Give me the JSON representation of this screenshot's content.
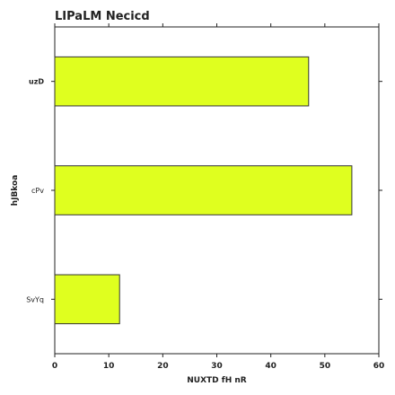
{
  "chart_data": {
    "type": "bar",
    "orientation": "horizontal",
    "title": "LIPaLM Necicd",
    "xlabel": "NUXTD fH nR",
    "ylabel": "hJBkoa",
    "categories": [
      "uzD",
      "cPv",
      "SvYq"
    ],
    "values": [
      47,
      55,
      12
    ],
    "xlim": [
      0,
      60
    ],
    "xticks": [
      0,
      10,
      20,
      30,
      40,
      50,
      60
    ],
    "grid": false,
    "bar_color": "#dfff1f",
    "edge_color": "#333333"
  }
}
